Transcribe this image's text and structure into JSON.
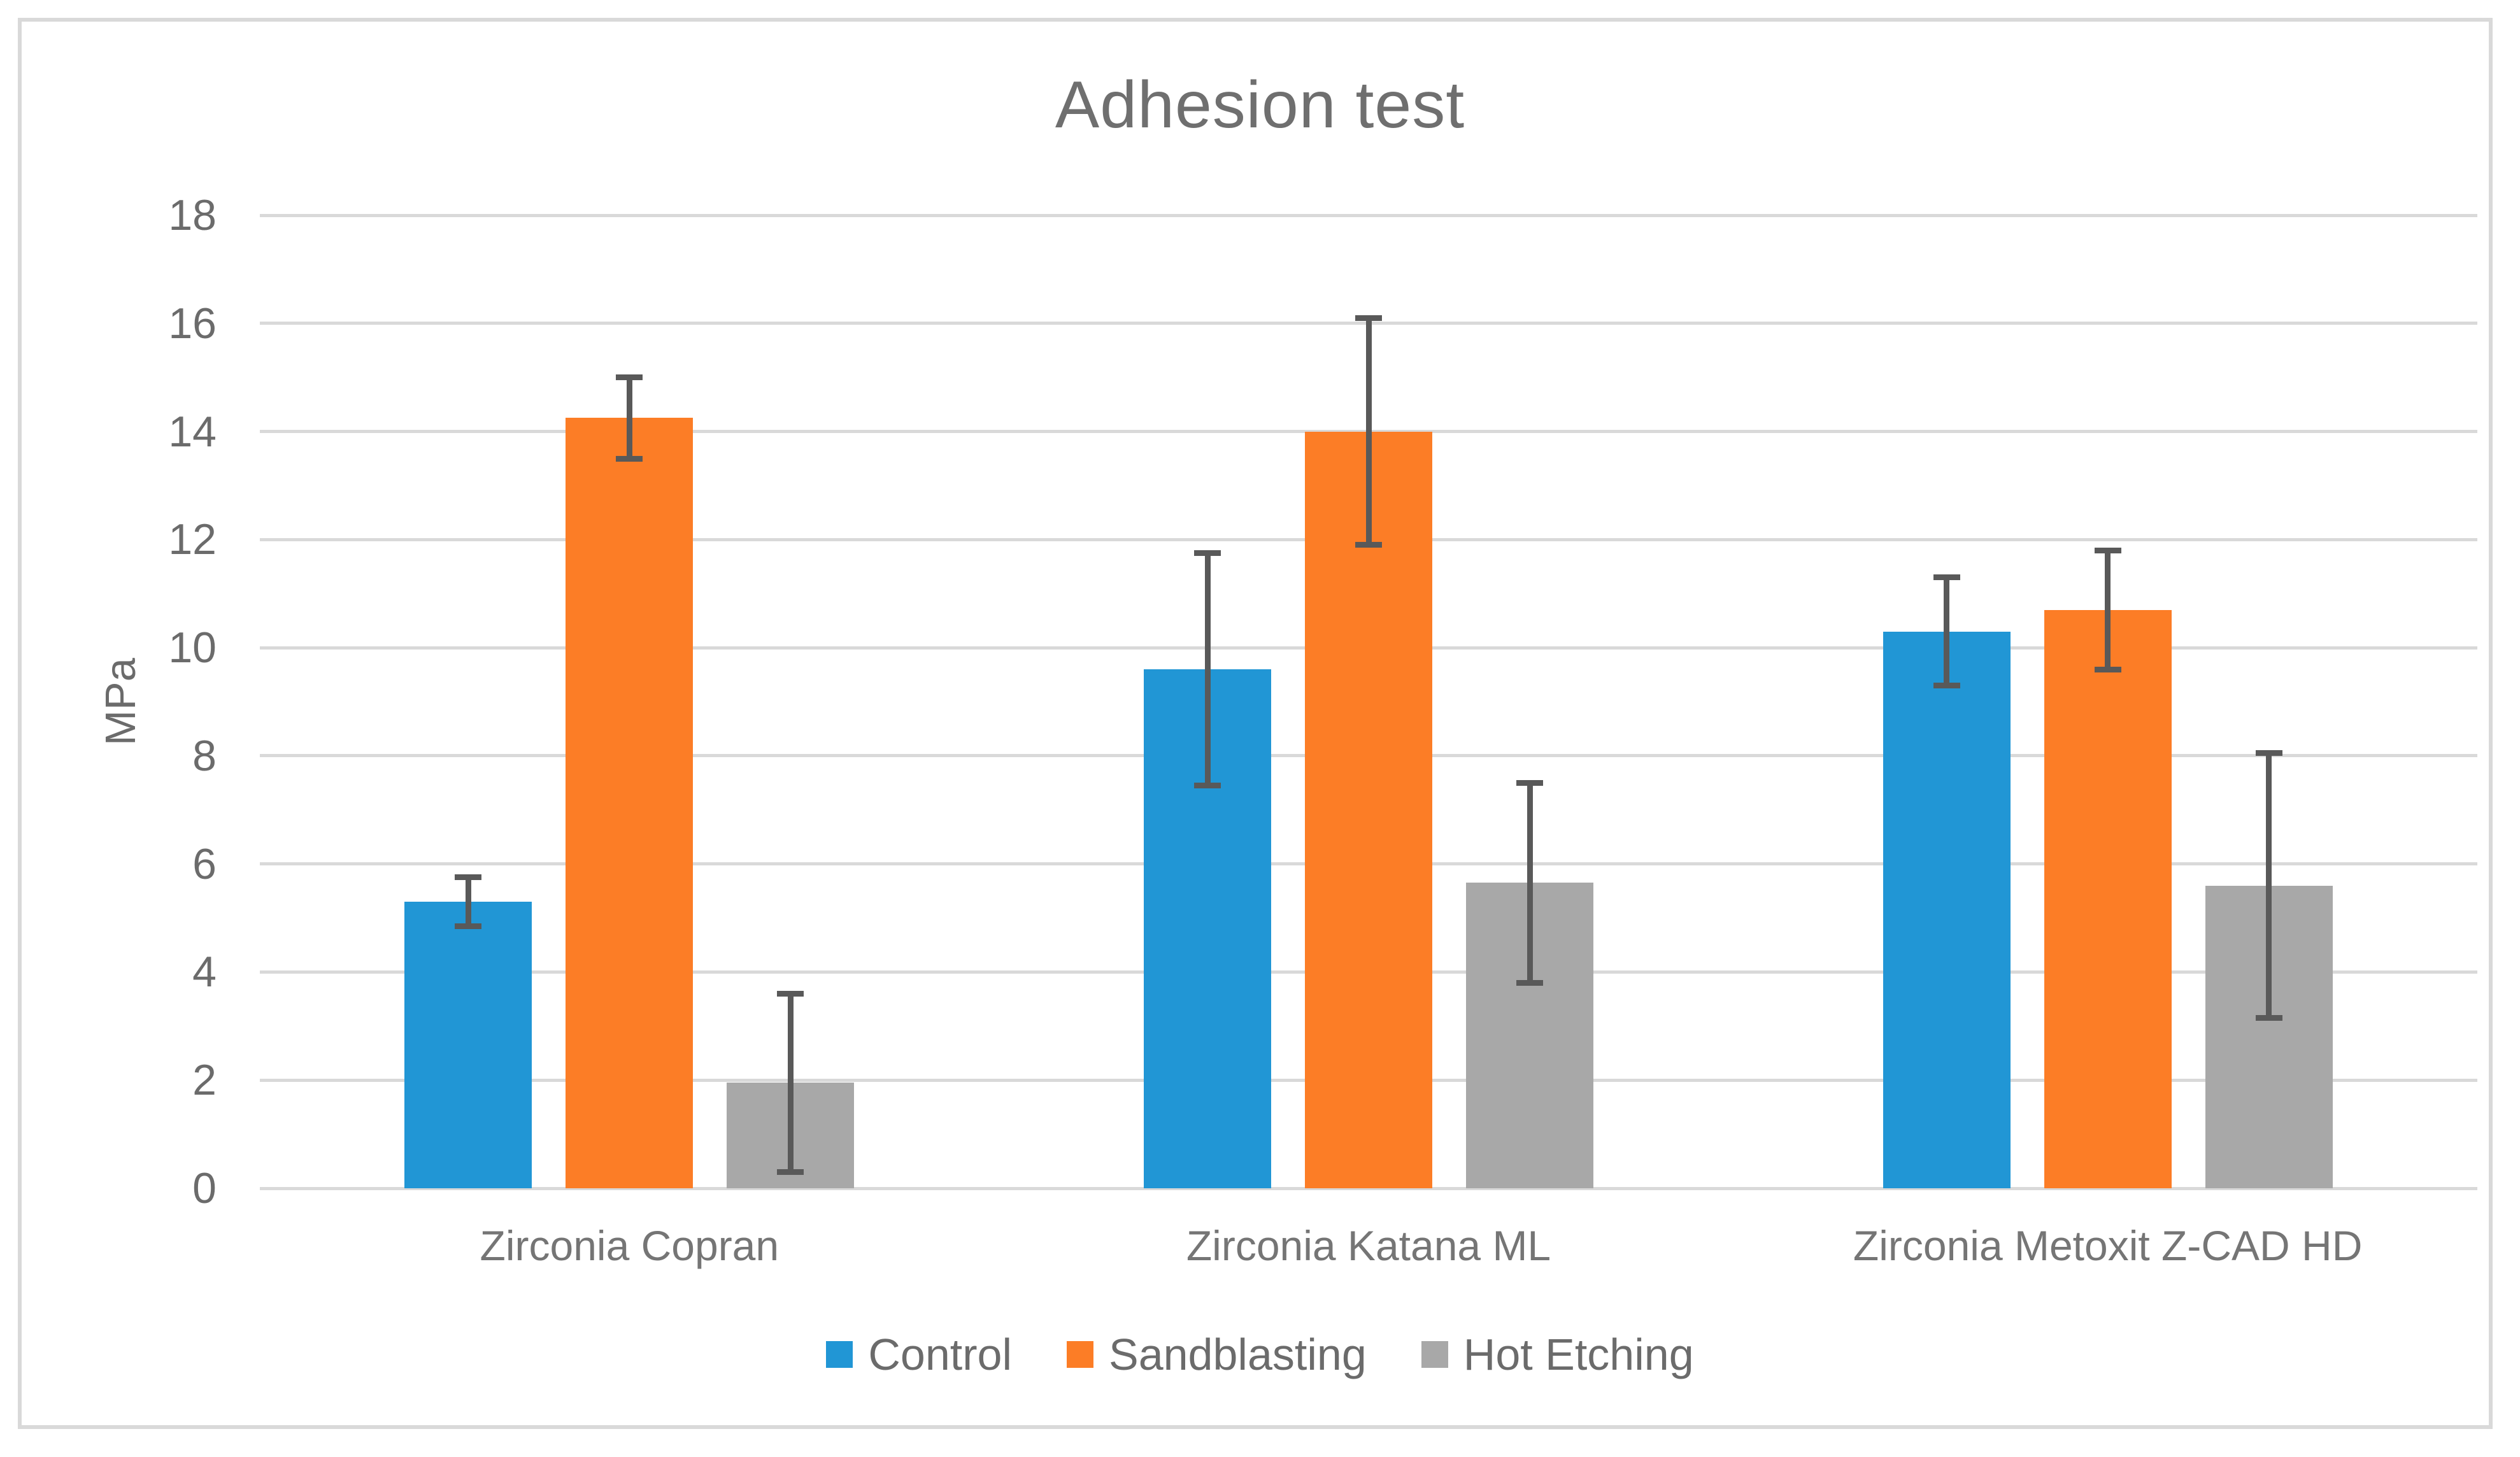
{
  "figure": {
    "title": "Adhesion test"
  },
  "chart_data": {
    "type": "bar",
    "title": "Adhesion test",
    "xlabel": "",
    "ylabel": "MPa",
    "ylim": [
      0,
      18
    ],
    "ytick_step": 2,
    "yticks": [
      0,
      2,
      4,
      6,
      8,
      10,
      12,
      14,
      16,
      18
    ],
    "grid": true,
    "legend_position": "bottom",
    "categories": [
      "Zirconia Copran",
      "Zirconia Katana ML",
      "Zirconia Metoxit Z-CAD HD"
    ],
    "series": [
      {
        "name": "Control",
        "color": "#2196D5",
        "values": [
          5.3,
          9.6,
          10.3
        ],
        "errors": [
          0.45,
          2.15,
          1.0
        ]
      },
      {
        "name": "Sandblasting",
        "color": "#FC7D26",
        "values": [
          14.25,
          14.0,
          10.7
        ],
        "errors": [
          0.75,
          2.1,
          1.1
        ]
      },
      {
        "name": "Hot Etching",
        "color": "#A8A8A8",
        "values": [
          1.95,
          5.65,
          5.6
        ],
        "errors": [
          1.65,
          1.85,
          2.45
        ]
      }
    ]
  },
  "colors": {
    "gridline": "#D9D9D9",
    "error_bar": "#595959",
    "axis_text": "#6B6B6B",
    "title_text": "#6F6F6F",
    "frame_border": "#D9D9D9",
    "background": "#FFFFFF"
  }
}
